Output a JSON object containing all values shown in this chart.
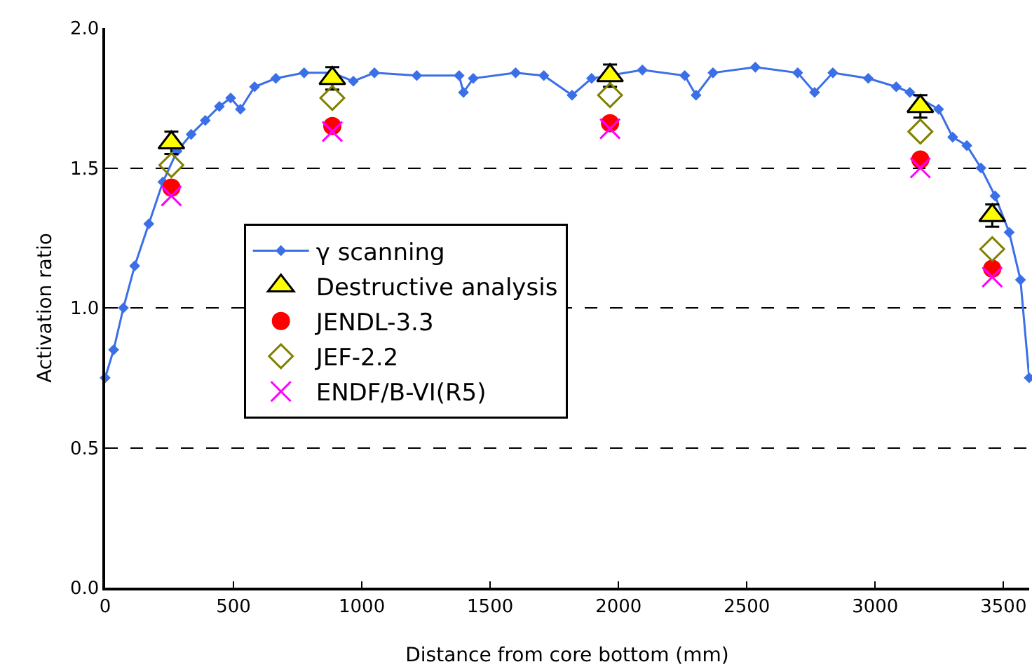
{
  "chart_data": {
    "type": "scatter",
    "xlabel": "Distance from core bottom (mm)",
    "ylabel": "Activation ratio",
    "xlim": [
      0,
      3600
    ],
    "xticks": [
      0,
      500,
      1000,
      1500,
      2000,
      2500,
      3000,
      3500
    ],
    "ylim": [
      0,
      2
    ],
    "yticks": [
      {
        "value": 0,
        "label": "0.0"
      },
      {
        "value": 0.5,
        "label": "0.5"
      },
      {
        "value": 1,
        "label": "1.0"
      },
      {
        "value": 1.5,
        "label": "1.5"
      },
      {
        "value": 2,
        "label": "2.0"
      }
    ],
    "grid": "y",
    "legend": "left",
    "series": [
      {
        "name": "γ scanning",
        "type": "line",
        "marker": "diamond",
        "color": "#3b6fe8",
        "x": [
          0,
          33,
          71,
          115,
          170,
          225,
          280,
          335,
          390,
          445,
          489,
          527,
          582,
          665,
          775,
          885,
          967,
          1049,
          1214,
          1379,
          1396,
          1434,
          1599,
          1709,
          1819,
          1895,
          2093,
          2258,
          2302,
          2368,
          2533,
          2698,
          2764,
          2835,
          2973,
          3082,
          3135,
          3247,
          3302,
          3357,
          3412,
          3467,
          3522,
          3566,
          3600
        ],
        "values": [
          0.75,
          0.85,
          1.0,
          1.15,
          1.3,
          1.45,
          1.56,
          1.62,
          1.67,
          1.72,
          1.75,
          1.71,
          1.79,
          1.82,
          1.84,
          1.84,
          1.81,
          1.84,
          1.83,
          1.83,
          1.77,
          1.82,
          1.84,
          1.83,
          1.76,
          1.82,
          1.85,
          1.83,
          1.76,
          1.84,
          1.86,
          1.84,
          1.77,
          1.84,
          1.82,
          1.79,
          1.77,
          1.71,
          1.61,
          1.58,
          1.5,
          1.4,
          1.27,
          1.1,
          0.75
        ]
      },
      {
        "name": "Destructive analysis",
        "marker": "triangle",
        "color": "#ffff00",
        "x": [
          258,
          885,
          1967,
          3176,
          3456
        ],
        "values": [
          1.59,
          1.82,
          1.83,
          1.72,
          1.33
        ],
        "errors": [
          0.04,
          0.04,
          0.04,
          0.04,
          0.04
        ]
      },
      {
        "name": "JENDL-3.3",
        "marker": "circle",
        "color": "#ff0000",
        "x": [
          258,
          885,
          1967,
          3176,
          3456
        ],
        "values": [
          1.43,
          1.65,
          1.66,
          1.53,
          1.14
        ]
      },
      {
        "name": "JEF-2.2",
        "marker": "diamond",
        "color": "#808000",
        "x": [
          258,
          885,
          1967,
          3176,
          3456
        ],
        "values": [
          1.51,
          1.75,
          1.76,
          1.63,
          1.21
        ]
      },
      {
        "name": "ENDF/B-VI(R5)",
        "marker": "cross",
        "color": "#ff00ff",
        "x": [
          258,
          885,
          1967,
          3176,
          3456
        ],
        "values": [
          1.4,
          1.63,
          1.64,
          1.5,
          1.11
        ]
      }
    ]
  }
}
